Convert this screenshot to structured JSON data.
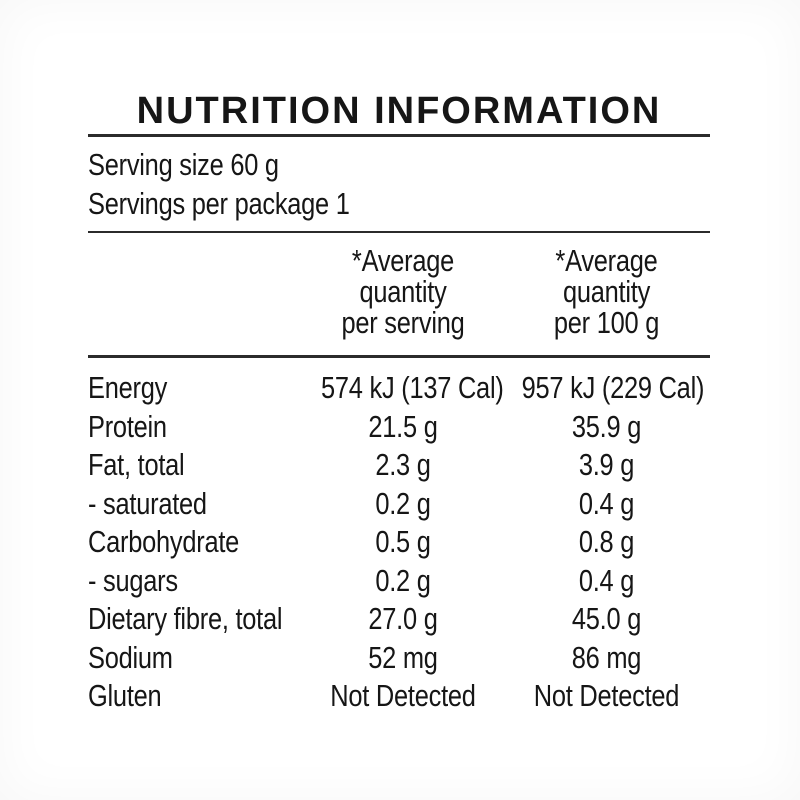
{
  "title": "NUTRITION INFORMATION",
  "serving_info": {
    "serving_size": "Serving size 60 g",
    "servings_per_package": "Servings per package 1"
  },
  "table": {
    "col_headers": [
      {
        "lines": [
          "*Average",
          "quantity",
          "per serving"
        ]
      },
      {
        "lines": [
          "*Average",
          "quantity",
          "per 100 g"
        ]
      }
    ],
    "rows": [
      {
        "nutrient": "Energy",
        "per_serving": "574 kJ (137 Cal)",
        "per_100g": "957 kJ (229 Cal)"
      },
      {
        "nutrient": "Protein",
        "per_serving": "21.5 g",
        "per_100g": "35.9 g"
      },
      {
        "nutrient": "Fat, total",
        "per_serving": "2.3 g",
        "per_100g": "3.9 g"
      },
      {
        "nutrient": "- saturated",
        "per_serving": "0.2 g",
        "per_100g": "0.4 g"
      },
      {
        "nutrient": "Carbohydrate",
        "per_serving": "0.5 g",
        "per_100g": "0.8 g"
      },
      {
        "nutrient": "- sugars",
        "per_serving": "0.2 g",
        "per_100g": "0.4 g"
      },
      {
        "nutrient": "Dietary fibre, total",
        "per_serving": "27.0 g",
        "per_100g": "45.0 g"
      },
      {
        "nutrient": "Sodium",
        "per_serving": "52 mg",
        "per_100g": "86 mg"
      },
      {
        "nutrient": "Gluten",
        "per_serving": "Not Detected",
        "per_100g": "Not Detected"
      }
    ]
  },
  "colors": {
    "text": "#161616",
    "rule": "#2b2b2b",
    "background": "#ffffff"
  }
}
